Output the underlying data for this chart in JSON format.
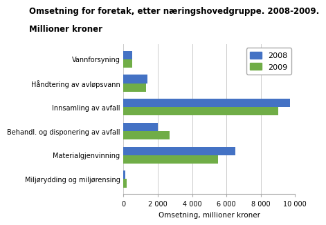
{
  "title_line1": "Omsetning for foretak, etter næringshovedgruppe. 2008-2009.",
  "title_line2": "Millioner kroner",
  "categories": [
    "Vannforsyning",
    "Håndtering av avløpsvann",
    "Innsamling av avfall",
    "Behandl. og disponering av avfall",
    "Materialgjenvinning",
    "Miljørydding og miljørensing"
  ],
  "values_2008": [
    500,
    1400,
    9700,
    2000,
    6500,
    100
  ],
  "values_2009": [
    500,
    1300,
    9000,
    2700,
    5500,
    200
  ],
  "color_2008": "#4472C4",
  "color_2009": "#70AD47",
  "xlabel": "Omsetning, millioner kroner",
  "xlim": [
    0,
    10000
  ],
  "xticks": [
    0,
    2000,
    4000,
    6000,
    8000,
    10000
  ],
  "xtick_labels": [
    "0",
    "2 000",
    "4 000",
    "6 000",
    "8 000",
    "10 000"
  ],
  "legend_labels": [
    "2008",
    "2009"
  ],
  "background_color": "#ffffff",
  "grid_color": "#cccccc",
  "title_fontsize": 8.5,
  "axis_fontsize": 7.5,
  "tick_fontsize": 7,
  "legend_fontsize": 8
}
